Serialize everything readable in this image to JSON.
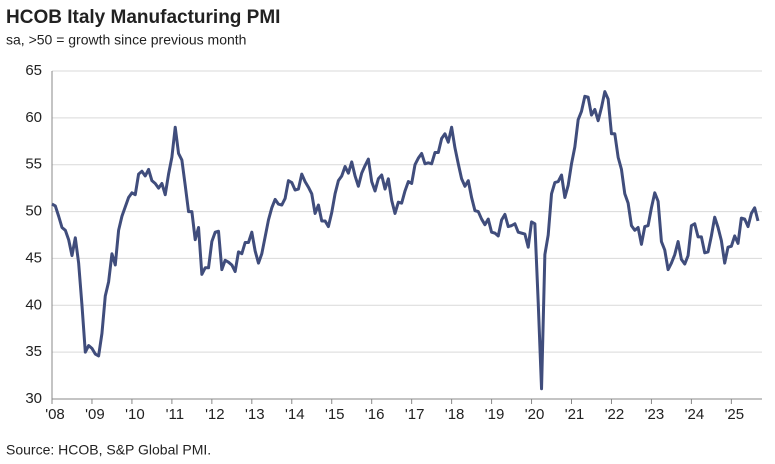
{
  "chart_data": {
    "type": "line",
    "title": "HCOB Italy Manufacturing PMI",
    "subtitle": "sa, >50 = growth since previous month",
    "source": "Source: HCOB, S&P Global PMI.",
    "categories": [
      "'08",
      null,
      null,
      null,
      null,
      null,
      null,
      null,
      null,
      null,
      null,
      null,
      "'09",
      null,
      null,
      null,
      null,
      null,
      null,
      null,
      null,
      null,
      null,
      null,
      "'10",
      null,
      null,
      null,
      null,
      null,
      null,
      null,
      null,
      null,
      null,
      null,
      "'11",
      null,
      null,
      null,
      null,
      null,
      null,
      null,
      null,
      null,
      null,
      null,
      "'12",
      null,
      null,
      null,
      null,
      null,
      null,
      null,
      null,
      null,
      null,
      null,
      "'13",
      null,
      null,
      null,
      null,
      null,
      null,
      null,
      null,
      null,
      null,
      null,
      "'14",
      null,
      null,
      null,
      null,
      null,
      null,
      null,
      null,
      null,
      null,
      null,
      "'15",
      null,
      null,
      null,
      null,
      null,
      null,
      null,
      null,
      null,
      null,
      null,
      "'16",
      null,
      null,
      null,
      null,
      null,
      null,
      null,
      null,
      null,
      null,
      null,
      "'17",
      null,
      null,
      null,
      null,
      null,
      null,
      null,
      null,
      null,
      null,
      null,
      "'18",
      null,
      null,
      null,
      null,
      null,
      null,
      null,
      null,
      null,
      null,
      null,
      "'19",
      null,
      null,
      null,
      null,
      null,
      null,
      null,
      null,
      null,
      null,
      null,
      "'20",
      null,
      null,
      null,
      null,
      null,
      null,
      null,
      null,
      null,
      null,
      null,
      "'21",
      null,
      null,
      null,
      null,
      null,
      null,
      null,
      null,
      null,
      null,
      null,
      "'22",
      null,
      null,
      null,
      null,
      null,
      null,
      null,
      null,
      null,
      null,
      null,
      "'23",
      null,
      null,
      null,
      null,
      null,
      null,
      null,
      null,
      null,
      null,
      null,
      "'24",
      null,
      null,
      null,
      null,
      null,
      null,
      null,
      null,
      null,
      null,
      null,
      "'25",
      null,
      null,
      null,
      null,
      null,
      null,
      null,
      null
    ],
    "series": [
      {
        "name": "PMI",
        "color": "#404d7c",
        "values": [
          50.8,
          50.6,
          49.5,
          48.3,
          48.0,
          47.0,
          45.3,
          47.2,
          44.5,
          40.0,
          35.0,
          35.7,
          35.4,
          34.8,
          34.6,
          37.0,
          41.0,
          42.5,
          45.5,
          44.3,
          48.0,
          49.5,
          50.5,
          51.5,
          52.0,
          51.8,
          54.0,
          54.3,
          53.8,
          54.5,
          53.3,
          53.0,
          52.5,
          53.0,
          51.8,
          54.0,
          55.8,
          59.0,
          56.2,
          55.5,
          52.8,
          50.0,
          50.0,
          47.0,
          48.3,
          43.3,
          44.0,
          44.0,
          46.8,
          47.8,
          47.9,
          43.8,
          44.8,
          44.6,
          44.3,
          43.6,
          45.7,
          45.5,
          46.7,
          46.7,
          47.8,
          45.8,
          44.5,
          45.5,
          47.3,
          49.1,
          50.4,
          51.3,
          50.8,
          50.7,
          51.4,
          53.3,
          53.1,
          52.3,
          52.4,
          54.0,
          53.2,
          52.6,
          51.9,
          49.8,
          50.7,
          49.0,
          49.0,
          48.4,
          49.9,
          51.9,
          53.3,
          53.8,
          54.8,
          54.1,
          55.3,
          53.8,
          52.7,
          54.1,
          54.9,
          55.6,
          53.2,
          52.2,
          53.5,
          53.9,
          52.4,
          53.5,
          51.2,
          49.8,
          51.0,
          50.9,
          52.2,
          53.2,
          53.0,
          55.0,
          55.7,
          56.2,
          55.1,
          55.2,
          55.1,
          56.3,
          56.3,
          57.8,
          58.3,
          57.4,
          59.0,
          56.8,
          55.1,
          53.5,
          52.7,
          53.3,
          51.5,
          50.1,
          50.0,
          49.2,
          48.6,
          49.2,
          47.8,
          47.7,
          47.4,
          49.1,
          49.7,
          48.4,
          48.5,
          48.7,
          47.8,
          47.7,
          47.6,
          46.2,
          48.9,
          48.7,
          40.3,
          31.1,
          45.4,
          47.5,
          51.9,
          53.1,
          53.2,
          53.9,
          51.5,
          52.8,
          55.1,
          56.9,
          59.8,
          60.7,
          62.3,
          62.2,
          60.3,
          60.9,
          59.7,
          61.1,
          62.8,
          62.0,
          58.3,
          58.3,
          55.8,
          54.5,
          51.9,
          50.9,
          48.5,
          48.0,
          48.3,
          46.5,
          48.4,
          48.5,
          50.4,
          52.0,
          51.1,
          46.8,
          45.9,
          43.8,
          44.5,
          45.4,
          46.8,
          44.9,
          44.4,
          45.3,
          48.5,
          48.7,
          47.3,
          47.3,
          45.6,
          45.7,
          47.4,
          49.4,
          48.3,
          46.9,
          44.5,
          46.2,
          46.3,
          47.4,
          46.6,
          49.3,
          49.2,
          48.4,
          49.8,
          50.4,
          49.0
        ]
      }
    ],
    "ylim": [
      30,
      65
    ],
    "yticks": [
      30,
      35,
      40,
      45,
      50,
      55,
      60,
      65
    ],
    "grid": true
  }
}
